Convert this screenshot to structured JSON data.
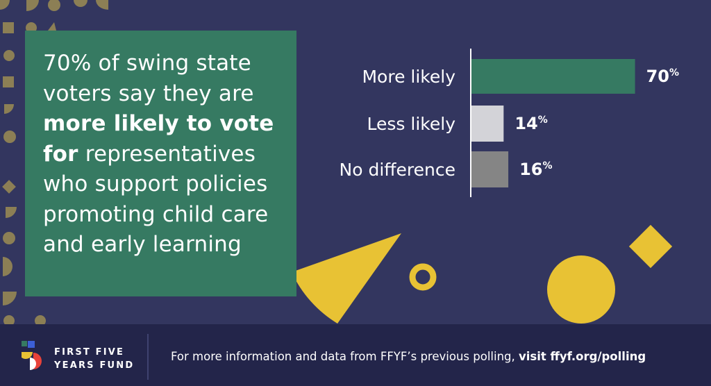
{
  "headline": {
    "lead": "70% of swing state voters say they are ",
    "emphasis": "more likely to vote for",
    "tail": " representatives who support policies promoting child care and early learning"
  },
  "chart_data": {
    "type": "bar",
    "orientation": "horizontal",
    "categories": [
      "More likely",
      "Less likely",
      "No difference"
    ],
    "values": [
      70,
      14,
      16
    ],
    "value_suffix": "%",
    "colors": [
      "#367a62",
      "#d3d3d8",
      "#858585"
    ],
    "xlim": [
      0,
      100
    ],
    "grid": false,
    "legend": "none"
  },
  "footer": {
    "brand_line1": "FIRST FIVE",
    "brand_line2": "YEARS FUND",
    "note_lead": "For more information and data from FFYF’s previous polling, ",
    "note_link": "visit ffyf.org/polling"
  },
  "colors": {
    "background": "#33365f",
    "footer": "#23254a",
    "accent_green": "#367a62",
    "accent_yellow": "#e8c234",
    "decor_olive": "#8c7f55"
  }
}
